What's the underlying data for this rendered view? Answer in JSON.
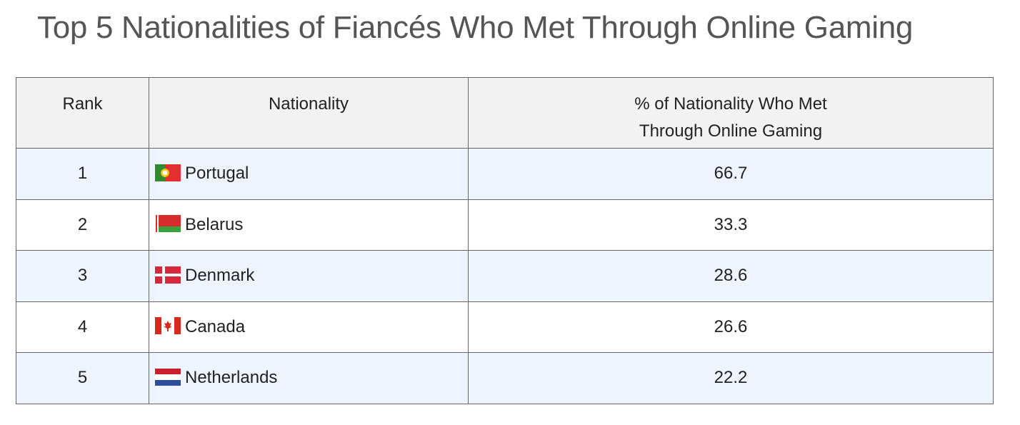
{
  "title": "Top 5 Nationalities of Fiancés Who Met Through Online Gaming",
  "table": {
    "columns": [
      "Rank",
      "Nationality",
      "% of Nationality Who Met Through Online Gaming"
    ],
    "rows": [
      [
        1,
        "Portugal",
        66.7
      ],
      [
        2,
        "Belarus",
        33.3
      ],
      [
        3,
        "Denmark",
        28.6
      ],
      [
        4,
        "Canada",
        26.6
      ],
      [
        5,
        "Netherlands",
        22.2
      ]
    ]
  }
}
